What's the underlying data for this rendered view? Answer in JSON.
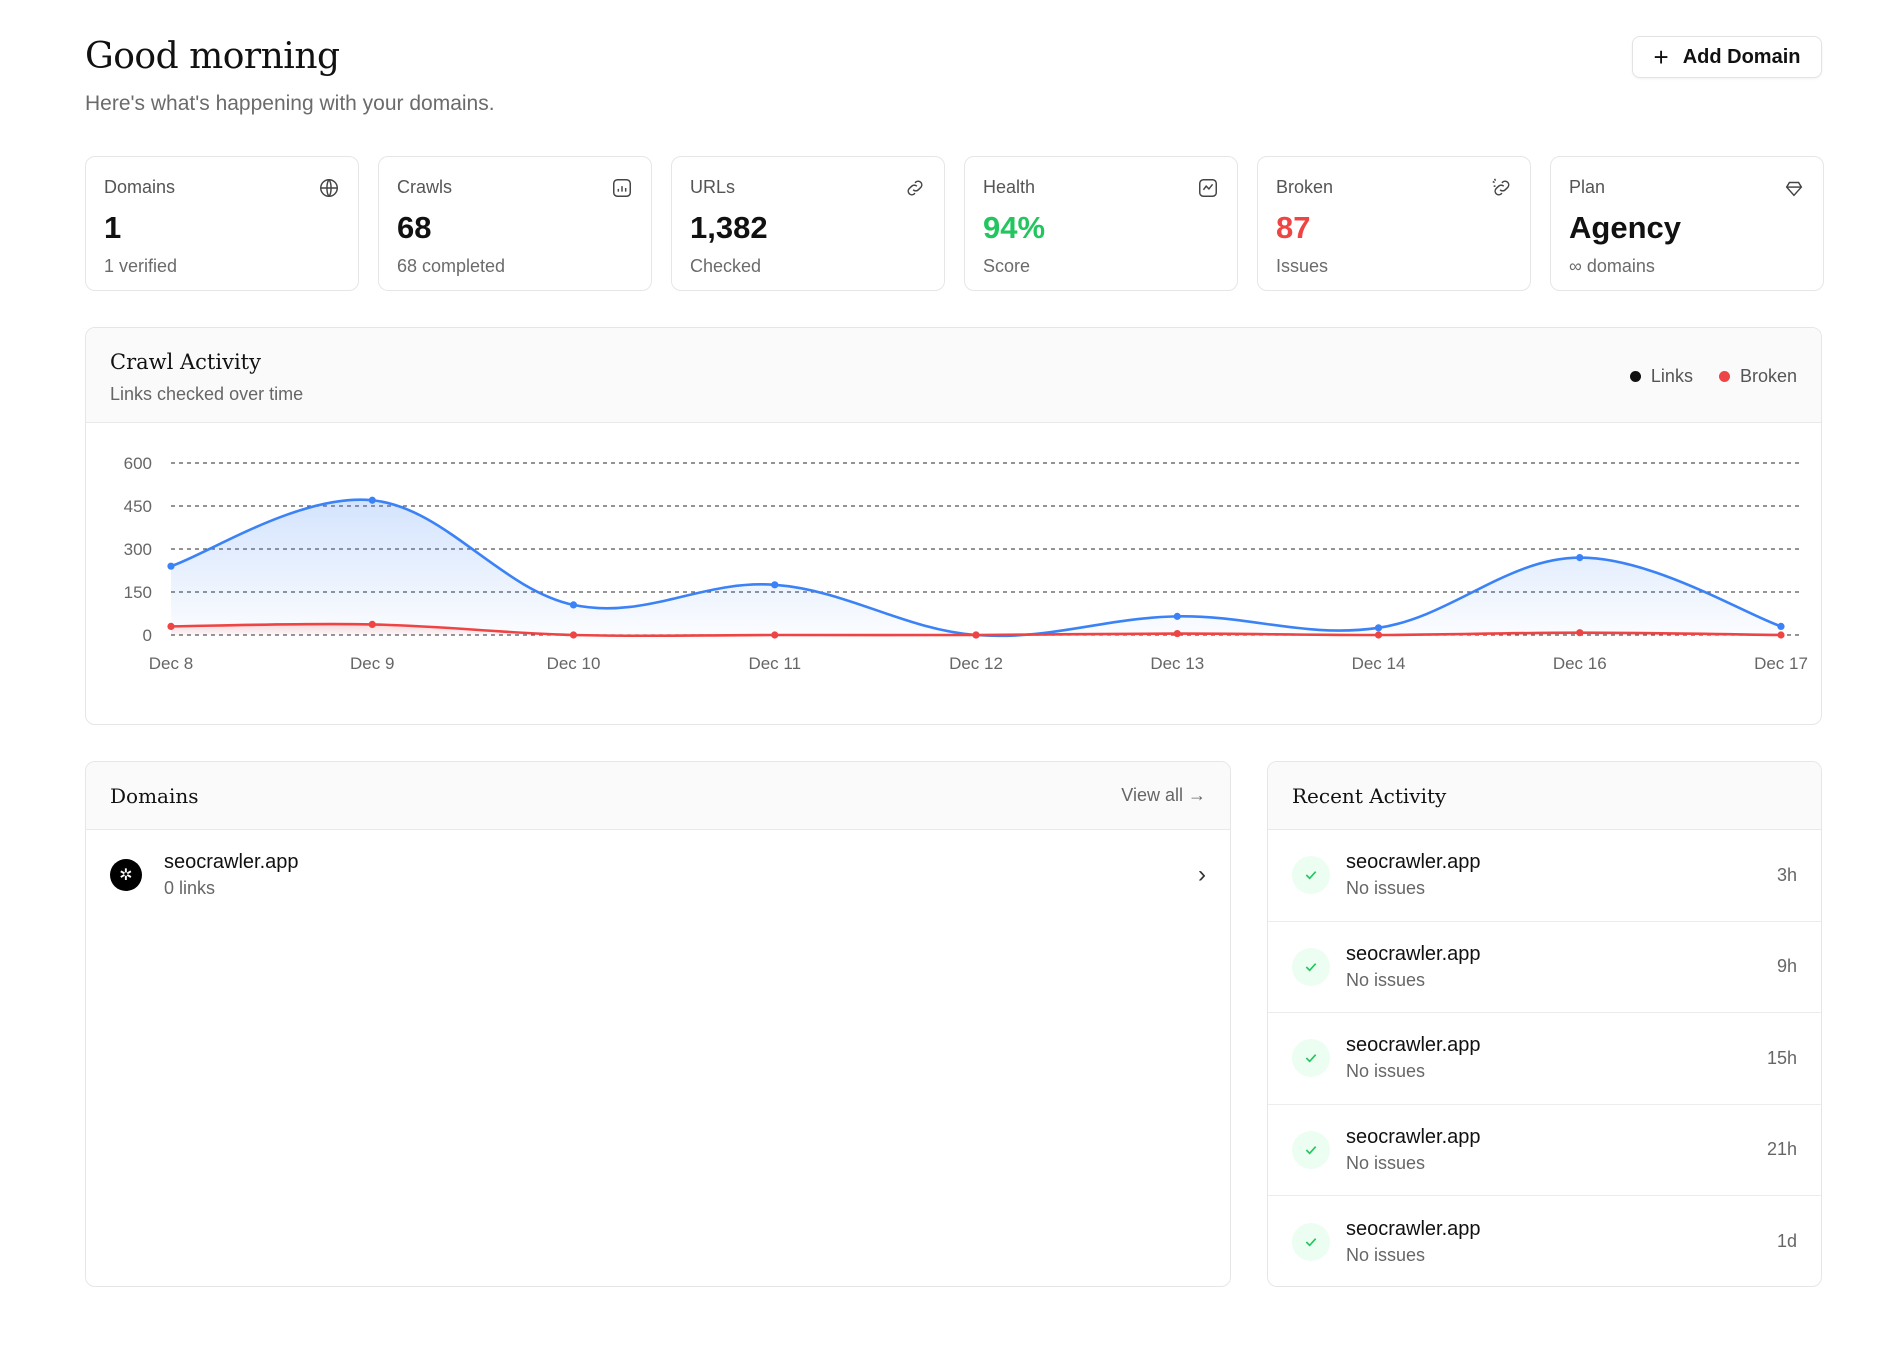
{
  "header": {
    "title": "Good morning",
    "subtitle": "Here's what's happening with your domains.",
    "add_button": "Add Domain"
  },
  "stats": [
    {
      "label": "Domains",
      "value": "1",
      "sub": "1 verified",
      "icon": "globe-icon"
    },
    {
      "label": "Crawls",
      "value": "68",
      "sub": "68 completed",
      "icon": "chart-icon"
    },
    {
      "label": "URLs",
      "value": "1,382",
      "sub": "Checked",
      "icon": "link-icon"
    },
    {
      "label": "Health",
      "value": "94%",
      "sub": "Score",
      "icon": "pulse-icon"
    },
    {
      "label": "Broken",
      "value": "87",
      "sub": "Issues",
      "icon": "broken-link-icon"
    },
    {
      "label": "Plan",
      "value": "Agency",
      "sub": "∞ domains",
      "icon": "gem-icon"
    }
  ],
  "colors": {
    "links": "#3b82f6",
    "broken": "#ef4444",
    "health_green": "#22c55e"
  },
  "chart_card": {
    "title": "Crawl Activity",
    "subtitle": "Links checked over time",
    "legend": [
      "Links",
      "Broken"
    ]
  },
  "chart_data": {
    "type": "area",
    "categories": [
      "Dec 8",
      "Dec 9",
      "Dec 10",
      "Dec 11",
      "Dec 12",
      "Dec 13",
      "Dec 14",
      "Dec 16",
      "Dec 17"
    ],
    "series": [
      {
        "name": "Links",
        "values": [
          240,
          470,
          105,
          175,
          0,
          65,
          25,
          270,
          30
        ]
      },
      {
        "name": "Broken",
        "values": [
          30,
          37,
          0,
          0,
          0,
          5,
          0,
          8,
          0
        ]
      }
    ],
    "yticks": [
      0,
      150,
      300,
      450,
      600
    ],
    "ylim": [
      0,
      600
    ],
    "grid": true,
    "legend_position": "top-right"
  },
  "domains_card": {
    "title": "Domains",
    "view_all": "View all →",
    "items": [
      {
        "name": "seocrawler.app",
        "sub": "0 links"
      }
    ]
  },
  "activity_card": {
    "title": "Recent Activity",
    "items": [
      {
        "name": "seocrawler.app",
        "sub": "No issues",
        "time": "3h"
      },
      {
        "name": "seocrawler.app",
        "sub": "No issues",
        "time": "9h"
      },
      {
        "name": "seocrawler.app",
        "sub": "No issues",
        "time": "15h"
      },
      {
        "name": "seocrawler.app",
        "sub": "No issues",
        "time": "21h"
      },
      {
        "name": "seocrawler.app",
        "sub": "No issues",
        "time": "1d"
      }
    ]
  }
}
